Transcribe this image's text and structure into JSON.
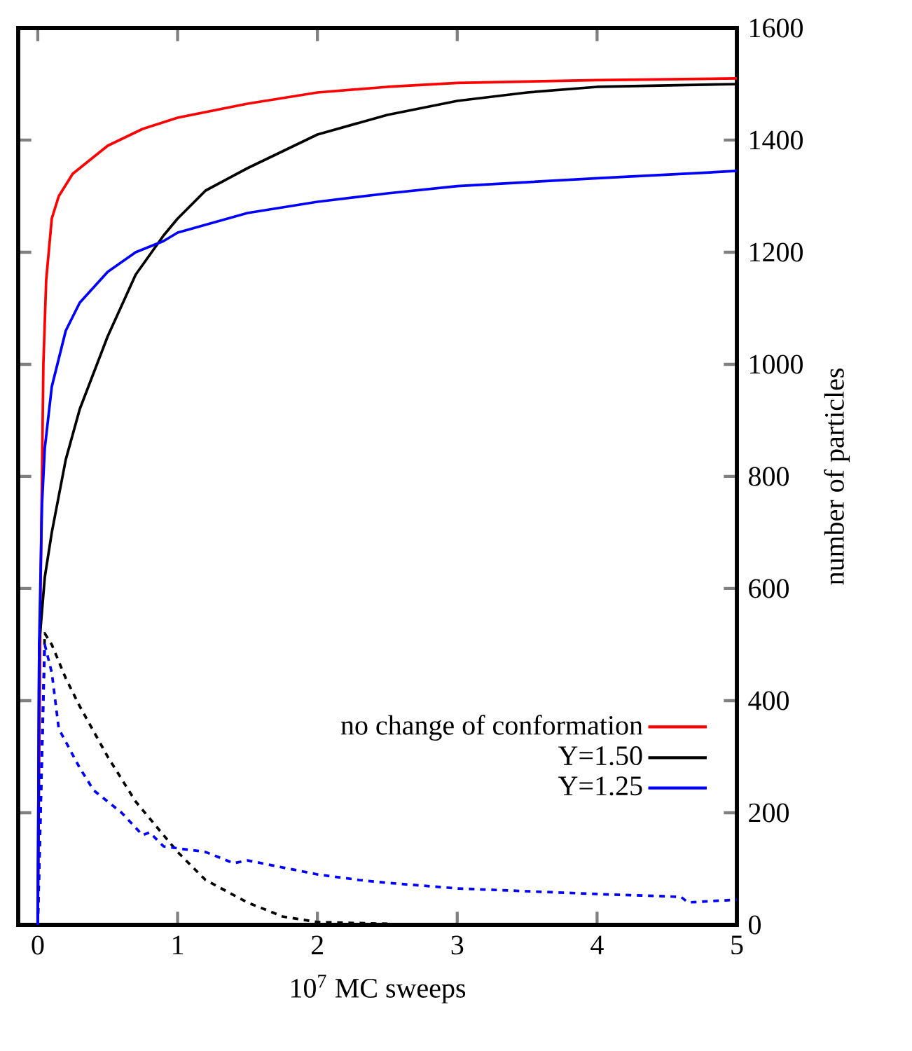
{
  "chart_data": {
    "type": "line",
    "xlabel": "10$^{7}$ MC sweeps",
    "ylabel": "number of particles",
    "xlim": [
      -0.14,
      5
    ],
    "ylim": [
      0,
      1600
    ],
    "xticks": [
      0,
      1,
      2,
      3,
      4,
      5
    ],
    "yticks": [
      0,
      200,
      400,
      600,
      800,
      1000,
      1200,
      1400,
      1600
    ],
    "legend": "bottom right",
    "grid": false,
    "series": [
      {
        "name": "no change of conformation",
        "color": "#ff0000",
        "line_style": "solid",
        "x": [
          0,
          0.02,
          0.04,
          0.06,
          0.1,
          0.15,
          0.25,
          0.5,
          0.75,
          1,
          1.5,
          2,
          2.5,
          3,
          4,
          5
        ],
        "values": [
          0,
          600,
          1000,
          1150,
          1260,
          1300,
          1340,
          1390,
          1420,
          1440,
          1465,
          1485,
          1495,
          1502,
          1507,
          1510
        ]
      },
      {
        "name": "Y=1.50",
        "color": "#000000",
        "line_style": "solid",
        "x": [
          0,
          0.01,
          0.05,
          0.1,
          0.2,
          0.3,
          0.5,
          0.7,
          0.9,
          1,
          1.2,
          1.5,
          1.75,
          2,
          2.5,
          3,
          3.5,
          4,
          5
        ],
        "values": [
          0,
          500,
          620,
          700,
          830,
          920,
          1050,
          1160,
          1230,
          1260,
          1310,
          1350,
          1380,
          1410,
          1445,
          1470,
          1485,
          1495,
          1500
        ]
      },
      {
        "name": "Y=1.25",
        "color": "#0000ff",
        "line_style": "solid",
        "x": [
          0,
          0.01,
          0.03,
          0.05,
          0.1,
          0.2,
          0.3,
          0.5,
          0.7,
          0.9,
          1,
          1.5,
          2,
          2.5,
          3,
          4,
          5
        ],
        "values": [
          0,
          500,
          750,
          850,
          960,
          1060,
          1110,
          1165,
          1200,
          1220,
          1235,
          1270,
          1290,
          1305,
          1318,
          1332,
          1345
        ]
      },
      {
        "color": "#000000",
        "line_style": "dashed",
        "x": [
          0,
          0.05,
          0.1,
          0.2,
          0.3,
          0.5,
          0.7,
          0.9,
          1,
          1.2,
          1.5,
          1.75,
          2,
          2.5
        ],
        "values": [
          0,
          520,
          500,
          440,
          390,
          300,
          220,
          160,
          130,
          80,
          40,
          15,
          5,
          2
        ]
      },
      {
        "color": "#0000ff",
        "line_style": "dashed",
        "x": [
          0,
          0.05,
          0.1,
          0.15,
          0.3,
          0.4,
          0.6,
          0.75,
          0.8,
          0.9,
          1.2,
          1.4,
          1.5,
          2,
          2.3,
          2.5,
          3,
          3.5,
          4,
          4.6,
          4.65,
          5
        ],
        "values": [
          0,
          500,
          450,
          350,
          280,
          240,
          200,
          160,
          165,
          140,
          130,
          110,
          115,
          90,
          80,
          75,
          65,
          60,
          55,
          50,
          40,
          45
        ]
      }
    ]
  }
}
